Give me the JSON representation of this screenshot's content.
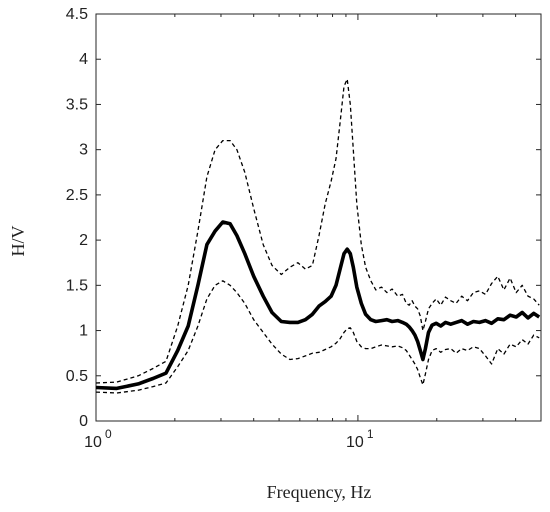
{
  "chart_data": {
    "type": "line",
    "xlabel": "Frequency, Hz",
    "ylabel": "H/V",
    "xscale": "log",
    "xlim": [
      1,
      50
    ],
    "ylim": [
      0,
      4.5
    ],
    "grid": false,
    "x_ticks": [
      {
        "value": 1,
        "base": "10",
        "exp": "0"
      },
      {
        "value": 10,
        "base": "10",
        "exp": "1"
      }
    ],
    "y_ticks": [
      {
        "value": 0,
        "label": "0"
      },
      {
        "value": 0.5,
        "label": "0.5"
      },
      {
        "value": 1,
        "label": "1"
      },
      {
        "value": 1.5,
        "label": "1.5"
      },
      {
        "value": 2,
        "label": "2"
      },
      {
        "value": 2.5,
        "label": "2.5"
      },
      {
        "value": 3,
        "label": "3"
      },
      {
        "value": 3.5,
        "label": "3.5"
      },
      {
        "value": 4,
        "label": "4"
      },
      {
        "value": 4.5,
        "label": "4.5"
      }
    ],
    "series": [
      {
        "style": "solid-thick",
        "color": "#000000",
        "x": [
          1.0,
          1.2,
          1.45,
          1.65,
          1.85,
          2.05,
          2.25,
          2.45,
          2.65,
          2.85,
          3.05,
          3.25,
          3.45,
          3.7,
          4.0,
          4.35,
          4.7,
          5.1,
          5.5,
          5.9,
          6.3,
          6.7,
          7.1,
          7.5,
          7.9,
          8.25,
          8.55,
          8.85,
          9.1,
          9.35,
          9.6,
          9.9,
          10.3,
          10.7,
          11.2,
          11.7,
          12.3,
          12.9,
          13.5,
          14.2,
          14.8,
          15.3,
          15.7,
          16.1,
          16.5,
          16.9,
          17.3,
          17.7,
          18.1,
          18.6,
          19.2,
          19.9,
          20.7,
          21.6,
          22.6,
          23.7,
          24.9,
          26.2,
          27.6,
          29.1,
          30.7,
          32.4,
          34.2,
          36.1,
          38.1,
          40.2,
          42.4,
          44.6,
          46.9,
          49.2
        ],
        "y": [
          0.37,
          0.36,
          0.41,
          0.47,
          0.53,
          0.78,
          1.05,
          1.5,
          1.95,
          2.1,
          2.2,
          2.18,
          2.05,
          1.85,
          1.6,
          1.38,
          1.2,
          1.1,
          1.09,
          1.09,
          1.12,
          1.18,
          1.27,
          1.32,
          1.38,
          1.5,
          1.68,
          1.85,
          1.9,
          1.85,
          1.7,
          1.48,
          1.3,
          1.18,
          1.12,
          1.1,
          1.11,
          1.12,
          1.1,
          1.11,
          1.09,
          1.07,
          1.04,
          1.0,
          0.95,
          0.88,
          0.78,
          0.68,
          0.8,
          0.98,
          1.06,
          1.08,
          1.05,
          1.09,
          1.07,
          1.09,
          1.11,
          1.07,
          1.1,
          1.09,
          1.11,
          1.08,
          1.13,
          1.12,
          1.17,
          1.15,
          1.2,
          1.14,
          1.19,
          1.15
        ]
      },
      {
        "style": "dashed",
        "color": "#000000",
        "x": [
          1.0,
          1.2,
          1.45,
          1.65,
          1.85,
          2.05,
          2.25,
          2.45,
          2.65,
          2.85,
          3.05,
          3.25,
          3.45,
          3.7,
          4.0,
          4.35,
          4.7,
          5.1,
          5.5,
          5.9,
          6.3,
          6.7,
          7.1,
          7.5,
          7.9,
          8.25,
          8.55,
          8.85,
          9.1,
          9.35,
          9.6,
          9.9,
          10.3,
          10.7,
          11.2,
          11.7,
          12.3,
          12.9,
          13.5,
          14.2,
          14.8,
          15.3,
          15.7,
          16.1,
          16.5,
          16.9,
          17.3,
          17.7,
          18.1,
          18.6,
          19.2,
          19.9,
          20.7,
          21.6,
          22.6,
          23.7,
          24.9,
          26.2,
          27.6,
          29.1,
          30.7,
          32.4,
          34.2,
          36.1,
          38.1,
          40.2,
          42.4,
          44.6,
          46.9,
          49.2
        ],
        "y": [
          0.42,
          0.43,
          0.5,
          0.58,
          0.66,
          1.05,
          1.5,
          2.1,
          2.7,
          3.0,
          3.1,
          3.1,
          3.0,
          2.75,
          2.35,
          1.95,
          1.72,
          1.62,
          1.7,
          1.75,
          1.68,
          1.72,
          2.05,
          2.4,
          2.65,
          2.9,
          3.3,
          3.7,
          3.78,
          3.5,
          3.0,
          2.4,
          1.95,
          1.7,
          1.55,
          1.45,
          1.48,
          1.42,
          1.46,
          1.38,
          1.4,
          1.3,
          1.28,
          1.33,
          1.27,
          1.24,
          1.16,
          1.0,
          1.1,
          1.24,
          1.3,
          1.35,
          1.28,
          1.37,
          1.33,
          1.3,
          1.38,
          1.33,
          1.42,
          1.44,
          1.4,
          1.52,
          1.6,
          1.45,
          1.58,
          1.42,
          1.5,
          1.38,
          1.35,
          1.28
        ]
      },
      {
        "style": "dashed",
        "color": "#000000",
        "x": [
          1.0,
          1.2,
          1.45,
          1.65,
          1.85,
          2.05,
          2.25,
          2.45,
          2.65,
          2.85,
          3.05,
          3.25,
          3.45,
          3.7,
          4.0,
          4.35,
          4.7,
          5.1,
          5.5,
          5.9,
          6.3,
          6.7,
          7.1,
          7.5,
          7.9,
          8.25,
          8.55,
          8.85,
          9.1,
          9.35,
          9.6,
          9.9,
          10.3,
          10.7,
          11.2,
          11.7,
          12.3,
          12.9,
          13.5,
          14.2,
          14.8,
          15.3,
          15.7,
          16.1,
          16.5,
          16.9,
          17.3,
          17.7,
          18.1,
          18.6,
          19.2,
          19.9,
          20.7,
          21.6,
          22.6,
          23.7,
          24.9,
          26.2,
          27.6,
          29.1,
          30.7,
          32.4,
          34.2,
          36.1,
          38.1,
          40.2,
          42.4,
          44.6,
          46.9,
          49.2
        ],
        "y": [
          0.32,
          0.31,
          0.34,
          0.38,
          0.42,
          0.6,
          0.78,
          1.05,
          1.35,
          1.5,
          1.55,
          1.5,
          1.42,
          1.3,
          1.12,
          0.98,
          0.85,
          0.74,
          0.68,
          0.69,
          0.72,
          0.75,
          0.76,
          0.79,
          0.82,
          0.86,
          0.91,
          0.98,
          1.02,
          1.03,
          0.98,
          0.88,
          0.82,
          0.8,
          0.8,
          0.82,
          0.84,
          0.83,
          0.82,
          0.83,
          0.81,
          0.78,
          0.73,
          0.68,
          0.63,
          0.57,
          0.48,
          0.4,
          0.52,
          0.68,
          0.78,
          0.8,
          0.76,
          0.79,
          0.8,
          0.75,
          0.8,
          0.78,
          0.82,
          0.8,
          0.72,
          0.63,
          0.8,
          0.74,
          0.85,
          0.82,
          0.9,
          0.85,
          0.95,
          0.92
        ]
      }
    ]
  }
}
